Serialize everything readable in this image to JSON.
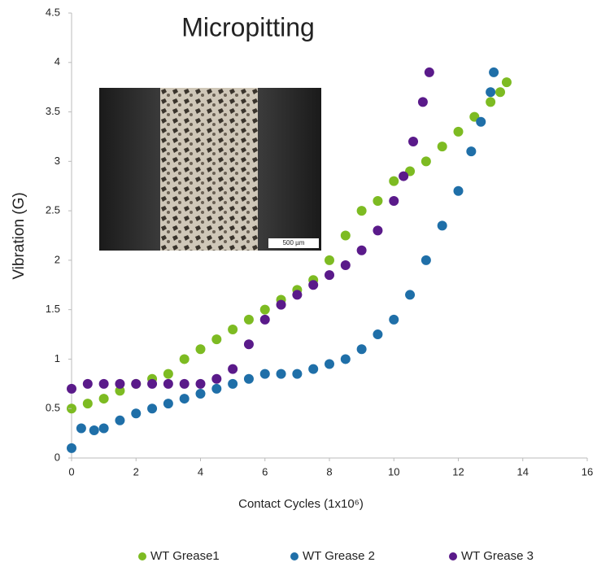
{
  "chart_data": {
    "type": "scatter",
    "title": "Micropitting",
    "xlabel": "Contact Cycles (1x10⁶)",
    "ylabel": "Vibration (G)",
    "xlim": [
      0,
      16
    ],
    "xticks": [
      0,
      2,
      4,
      6,
      8,
      10,
      12,
      14,
      16
    ],
    "ylim": [
      0,
      4.5
    ],
    "yticks": [
      0,
      0.5,
      1,
      1.5,
      2,
      2.5,
      3,
      3.5,
      4,
      4.5
    ],
    "grid": false,
    "legend": "bottom",
    "inset": {
      "scale_label": "500 µm"
    },
    "series": [
      {
        "name": "WT Grease1",
        "color": "#7dbb22",
        "x": [
          0,
          0.5,
          1,
          1.5,
          2,
          2.5,
          3,
          3.5,
          4,
          4.5,
          5,
          5.5,
          6,
          6.5,
          7,
          7.5,
          8,
          8.5,
          9,
          9.5,
          10,
          10.5,
          11,
          11.5,
          12,
          12.5,
          13,
          13.3,
          13.5
        ],
        "values": [
          0.5,
          0.55,
          0.6,
          0.68,
          0.75,
          0.8,
          0.85,
          1.0,
          1.1,
          1.2,
          1.3,
          1.4,
          1.5,
          1.6,
          1.7,
          1.8,
          2.0,
          2.25,
          2.5,
          2.6,
          2.8,
          2.9,
          3.0,
          3.15,
          3.3,
          3.45,
          3.6,
          3.7,
          3.8
        ]
      },
      {
        "name": "WT Grease 2",
        "color": "#1f6fa8",
        "x": [
          0,
          0.3,
          0.7,
          1,
          1.5,
          2,
          2.5,
          3,
          3.5,
          4,
          4.5,
          5,
          5.5,
          6,
          6.5,
          7,
          7.5,
          8,
          8.5,
          9,
          9.5,
          10,
          10.5,
          11,
          11.5,
          12,
          12.4,
          12.7,
          13,
          13.1
        ],
        "values": [
          0.1,
          0.3,
          0.28,
          0.3,
          0.38,
          0.45,
          0.5,
          0.55,
          0.6,
          0.65,
          0.7,
          0.75,
          0.8,
          0.85,
          0.85,
          0.85,
          0.9,
          0.95,
          1.0,
          1.1,
          1.25,
          1.4,
          1.65,
          2.0,
          2.35,
          2.7,
          3.1,
          3.4,
          3.7,
          3.9
        ]
      },
      {
        "name": "WT Grease 3",
        "color": "#5a1a8a",
        "x": [
          0,
          0.5,
          1,
          1.5,
          2,
          2.5,
          3,
          3.5,
          4,
          4.5,
          5,
          5.5,
          6,
          6.5,
          7,
          7.5,
          8,
          8.5,
          9,
          9.5,
          10,
          10.3,
          10.6,
          10.9,
          11.1
        ],
        "values": [
          0.7,
          0.75,
          0.75,
          0.75,
          0.75,
          0.75,
          0.75,
          0.75,
          0.75,
          0.8,
          0.9,
          1.15,
          1.4,
          1.55,
          1.65,
          1.75,
          1.85,
          1.95,
          2.1,
          2.3,
          2.6,
          2.85,
          3.2,
          3.6,
          3.9
        ]
      }
    ]
  }
}
